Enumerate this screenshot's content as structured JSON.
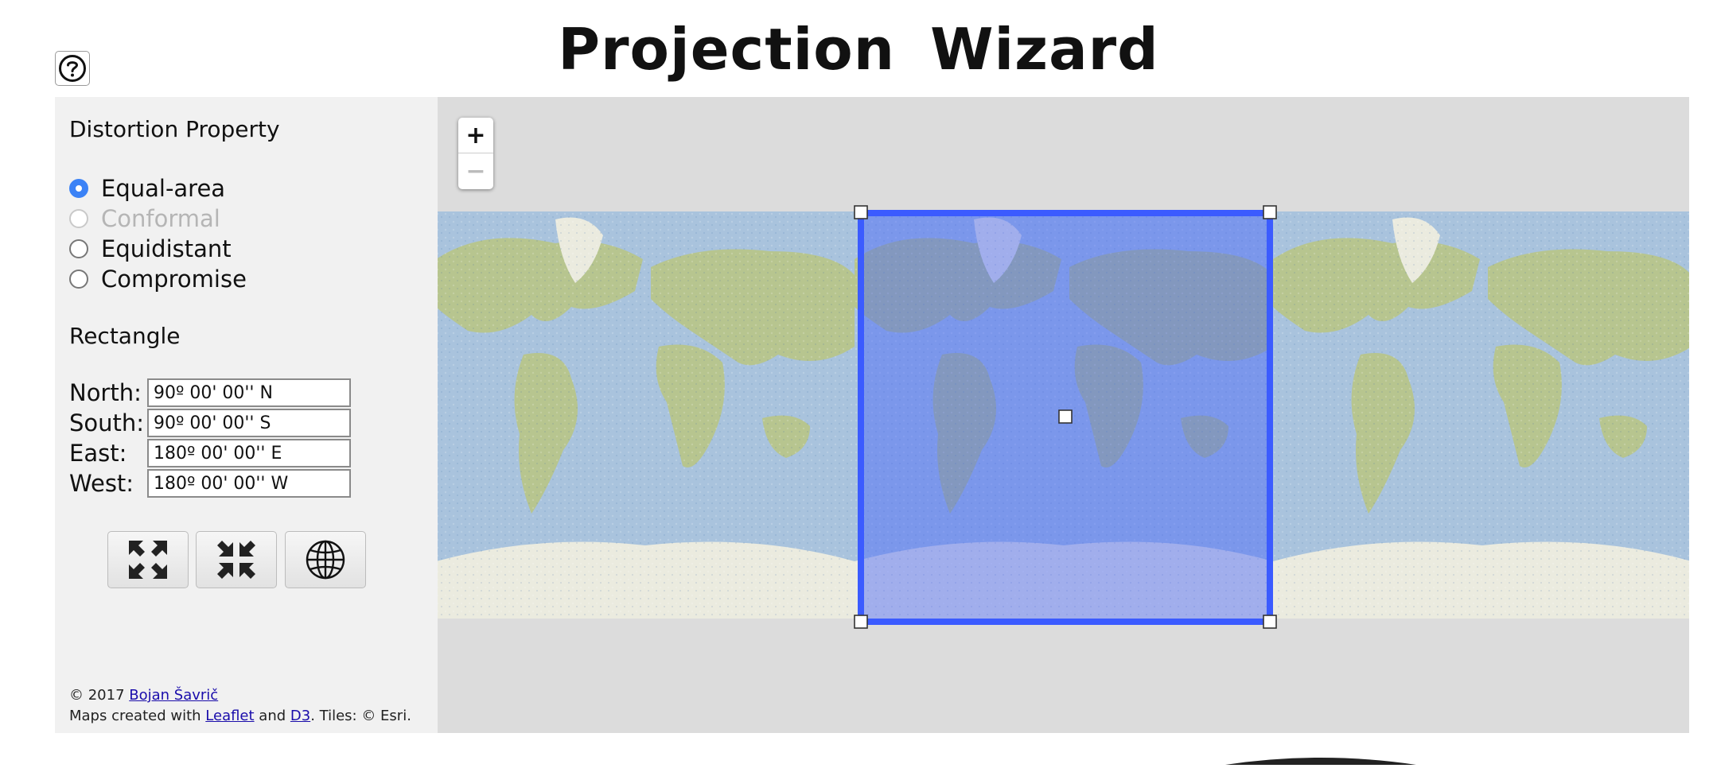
{
  "app": {
    "title": "Projection  Wizard",
    "help_icon": "question-circle-icon"
  },
  "distortion": {
    "heading": "Distortion Property",
    "options": [
      {
        "label": "Equal-area",
        "checked": true,
        "disabled": false
      },
      {
        "label": "Conformal",
        "checked": false,
        "disabled": true
      },
      {
        "label": "Equidistant",
        "checked": false,
        "disabled": false
      },
      {
        "label": "Compromise",
        "checked": false,
        "disabled": false
      }
    ]
  },
  "rectangle": {
    "heading": "Rectangle",
    "north": {
      "label": "North:",
      "value": "90º 00' 00'' N"
    },
    "south": {
      "label": "South:",
      "value": "90º 00' 00'' S"
    },
    "east": {
      "label": "East:",
      "value": "180º 00' 00'' E"
    },
    "west": {
      "label": "West:",
      "value": "180º 00' 00'' W"
    }
  },
  "tools": {
    "expand_icon": "expand-arrows-icon",
    "collapse_icon": "collapse-arrows-icon",
    "world_icon": "globe-icon"
  },
  "footer": {
    "copyright_prefix": "© 2017 ",
    "author_link": "Bojan Šavrič",
    "credits_prefix": "Maps created with ",
    "leaflet_link": "Leaflet",
    "and_text": " and ",
    "d3_link": "D3",
    "tiles_text": ". Tiles: © Esri."
  },
  "map": {
    "zoom_in_label": "+",
    "zoom_out_label": "−",
    "selection_color": "#3b5bff",
    "ocean_color": "#aac4de",
    "land_color": "#b6c48e",
    "ice_color": "#ecece0"
  }
}
